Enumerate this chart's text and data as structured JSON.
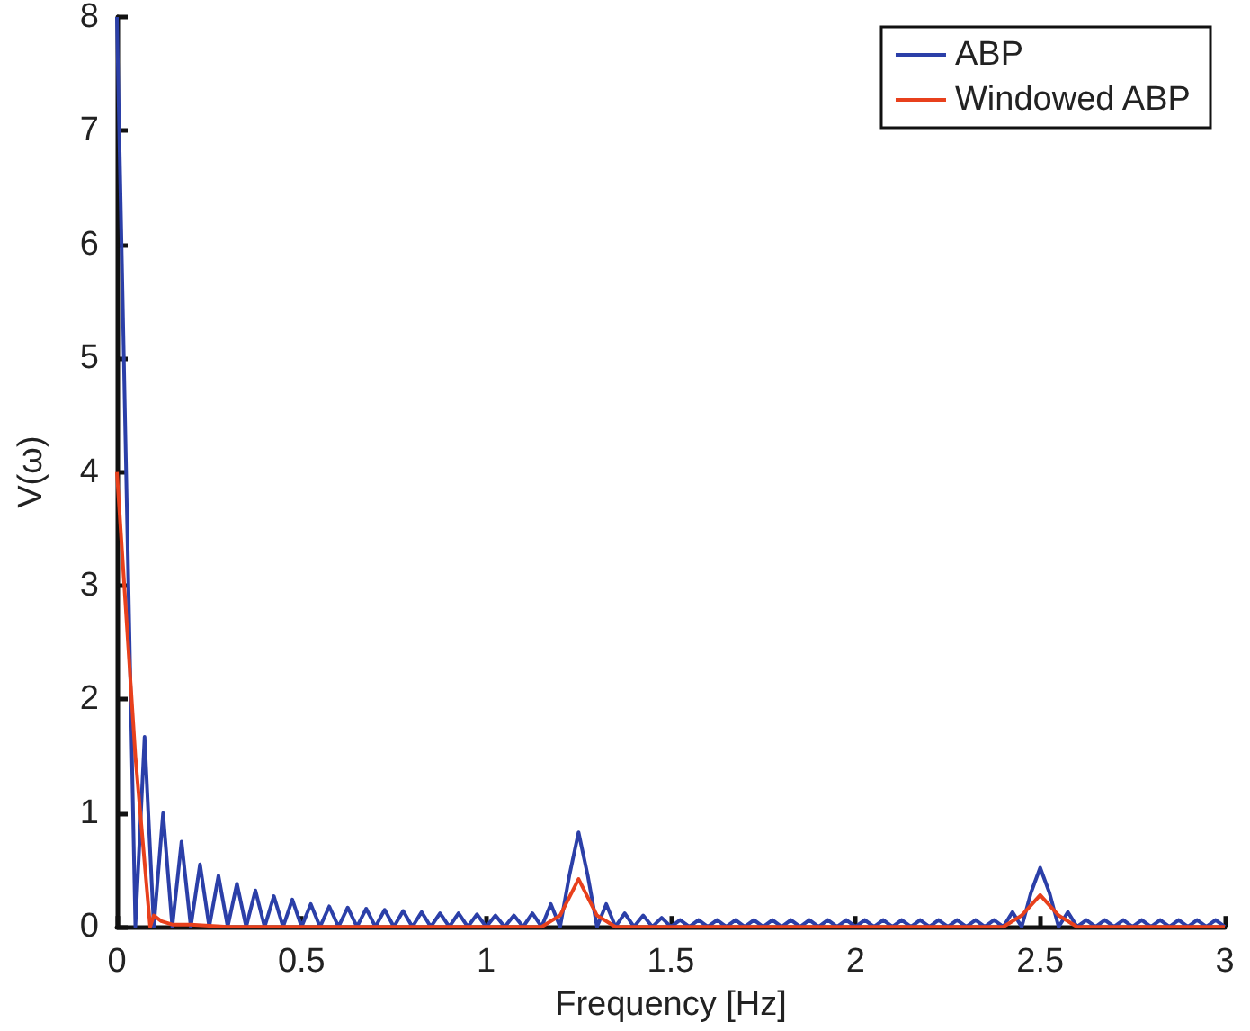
{
  "chart_data": {
    "type": "line",
    "xlabel": "Frequency [Hz]",
    "ylabel": "V(ω)",
    "xlim": [
      0,
      3
    ],
    "xticks": [
      0,
      0.5,
      1,
      1.5,
      2,
      2.5,
      3
    ],
    "ylim": [
      0,
      8
    ],
    "yticks": [
      0,
      1,
      2,
      3,
      4,
      5,
      6,
      7,
      8
    ],
    "grid": false,
    "legend": "top right",
    "marker": "none",
    "line_style": "solid",
    "series": [
      {
        "name": "ABP",
        "color": "#2b3fa8",
        "x": [
          0,
          0.05,
          0.075,
          0.1,
          0.125,
          0.15,
          0.175,
          0.2,
          0.225,
          0.25,
          0.275,
          0.3,
          0.325,
          0.35,
          0.375,
          0.4,
          0.425,
          0.45,
          0.475,
          0.5,
          0.525,
          0.55,
          0.575,
          0.6,
          0.625,
          0.65,
          0.675,
          0.7,
          0.725,
          0.75,
          0.775,
          0.8,
          0.825,
          0.85,
          0.875,
          0.9,
          0.925,
          0.95,
          0.975,
          1.0,
          1.025,
          1.05,
          1.075,
          1.1,
          1.125,
          1.15,
          1.175,
          1.2,
          1.225,
          1.25,
          1.275,
          1.3,
          1.325,
          1.35,
          1.375,
          1.4,
          1.425,
          1.45,
          1.475,
          1.5,
          1.525,
          1.55,
          1.575,
          1.6,
          1.625,
          1.65,
          1.675,
          1.7,
          1.725,
          1.75,
          1.775,
          1.8,
          1.825,
          1.85,
          1.875,
          1.9,
          1.925,
          1.95,
          1.975,
          2.0,
          2.025,
          2.05,
          2.075,
          2.1,
          2.125,
          2.15,
          2.175,
          2.2,
          2.225,
          2.25,
          2.275,
          2.3,
          2.325,
          2.35,
          2.375,
          2.4,
          2.425,
          2.45,
          2.475,
          2.5,
          2.525,
          2.55,
          2.575,
          2.6,
          2.625,
          2.65,
          2.675,
          2.7,
          2.725,
          2.75,
          2.775,
          2.8,
          2.825,
          2.85,
          2.875,
          2.9,
          2.925,
          2.95,
          2.975,
          3.0
        ],
        "values": [
          8,
          0,
          1.67,
          0,
          1.0,
          0,
          0.75,
          0,
          0.55,
          0,
          0.45,
          0,
          0.38,
          0,
          0.32,
          0,
          0.27,
          0,
          0.24,
          0,
          0.2,
          0,
          0.18,
          0,
          0.17,
          0,
          0.16,
          0,
          0.15,
          0,
          0.14,
          0,
          0.13,
          0,
          0.12,
          0,
          0.12,
          0,
          0.11,
          0,
          0.1,
          0,
          0.1,
          0,
          0.12,
          0,
          0.2,
          0,
          0.45,
          0.83,
          0.45,
          0,
          0.2,
          0,
          0.12,
          0,
          0.1,
          0,
          0.08,
          0,
          0.06,
          0,
          0.06,
          0,
          0.06,
          0,
          0.06,
          0,
          0.06,
          0,
          0.06,
          0,
          0.06,
          0,
          0.06,
          0,
          0.06,
          0,
          0.06,
          0,
          0.06,
          0,
          0.06,
          0,
          0.06,
          0,
          0.06,
          0,
          0.06,
          0,
          0.06,
          0,
          0.06,
          0,
          0.06,
          0,
          0.13,
          0,
          0.3,
          0.52,
          0.3,
          0,
          0.13,
          0,
          0.06,
          0,
          0.06,
          0,
          0.06,
          0,
          0.06,
          0,
          0.06,
          0,
          0.06,
          0,
          0.06,
          0,
          0.06,
          0
        ]
      },
      {
        "name": "Windowed ABP",
        "color": "#e8401c",
        "x": [
          0,
          0.02,
          0.05,
          0.09,
          0.1,
          0.12,
          0.15,
          0.2,
          0.3,
          1.15,
          1.2,
          1.25,
          1.3,
          1.35,
          2.4,
          2.45,
          2.5,
          2.55,
          2.6,
          3.0
        ],
        "values": [
          4,
          3,
          1.5,
          0,
          0.1,
          0.05,
          0.02,
          0.02,
          0,
          0,
          0.1,
          0.42,
          0.1,
          0,
          0,
          0.1,
          0.28,
          0.1,
          0,
          0
        ]
      }
    ]
  }
}
